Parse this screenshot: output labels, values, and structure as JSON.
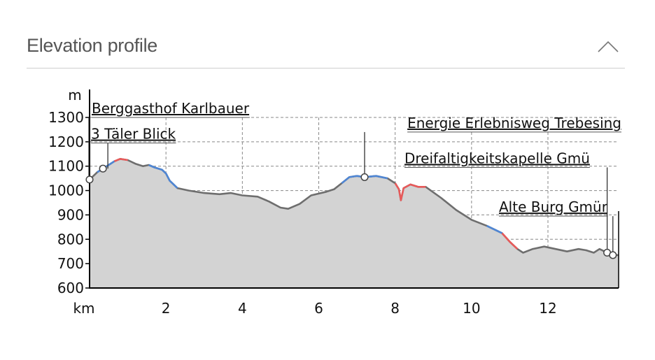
{
  "header": {
    "title": "Elevation profile",
    "collapse_icon": "chevron-up-icon"
  },
  "chart_data": {
    "type": "area",
    "ylabel": "m",
    "xlabel": "km",
    "xlim": [
      0,
      13.85
    ],
    "ylim": [
      600,
      1300
    ],
    "x_ticks": [
      2,
      4,
      6,
      8,
      10,
      12
    ],
    "y_ticks": [
      600,
      700,
      800,
      900,
      1000,
      1100,
      1200,
      1300
    ],
    "grid": true,
    "colors": {
      "fill": "#d3d3d3",
      "line": "#6e6e6e",
      "climb": "#4f86d4",
      "steep": "#e85a5a",
      "grid": "#888888",
      "axis": "#000000"
    },
    "profile": [
      [
        0.0,
        1045
      ],
      [
        0.2,
        1075
      ],
      [
        0.35,
        1090
      ],
      [
        0.5,
        1105
      ],
      [
        0.65,
        1120
      ],
      [
        0.8,
        1130
      ],
      [
        1.0,
        1125
      ],
      [
        1.2,
        1110
      ],
      [
        1.4,
        1100
      ],
      [
        1.55,
        1105
      ],
      [
        1.7,
        1095
      ],
      [
        1.9,
        1085
      ],
      [
        2.0,
        1070
      ],
      [
        2.1,
        1040
      ],
      [
        2.3,
        1010
      ],
      [
        2.6,
        1000
      ],
      [
        3.0,
        990
      ],
      [
        3.4,
        985
      ],
      [
        3.7,
        990
      ],
      [
        4.0,
        980
      ],
      [
        4.4,
        975
      ],
      [
        4.7,
        955
      ],
      [
        5.0,
        930
      ],
      [
        5.2,
        925
      ],
      [
        5.5,
        945
      ],
      [
        5.8,
        980
      ],
      [
        6.2,
        995
      ],
      [
        6.4,
        1005
      ],
      [
        6.6,
        1030
      ],
      [
        6.8,
        1055
      ],
      [
        7.0,
        1060
      ],
      [
        7.2,
        1055
      ],
      [
        7.5,
        1060
      ],
      [
        7.8,
        1050
      ],
      [
        8.0,
        1030
      ],
      [
        8.1,
        1005
      ],
      [
        8.15,
        960
      ],
      [
        8.22,
        1010
      ],
      [
        8.4,
        1025
      ],
      [
        8.6,
        1015
      ],
      [
        8.8,
        1015
      ],
      [
        9.2,
        970
      ],
      [
        9.6,
        920
      ],
      [
        10.0,
        880
      ],
      [
        10.4,
        855
      ],
      [
        10.8,
        825
      ],
      [
        11.0,
        790
      ],
      [
        11.2,
        760
      ],
      [
        11.35,
        745
      ],
      [
        11.6,
        760
      ],
      [
        11.9,
        770
      ],
      [
        12.2,
        760
      ],
      [
        12.5,
        750
      ],
      [
        12.8,
        760
      ],
      [
        13.0,
        755
      ],
      [
        13.2,
        745
      ],
      [
        13.35,
        760
      ],
      [
        13.55,
        745
      ],
      [
        13.7,
        735
      ],
      [
        13.85,
        735
      ]
    ],
    "colored_segments": [
      {
        "color": "climb",
        "from": 0.2,
        "to": 0.65
      },
      {
        "color": "steep",
        "from": 0.65,
        "to": 1.0
      },
      {
        "color": "climb",
        "from": 1.55,
        "to": 2.3
      },
      {
        "color": "climb",
        "from": 6.6,
        "to": 7.8
      },
      {
        "color": "steep",
        "from": 8.0,
        "to": 8.8
      },
      {
        "color": "climb",
        "from": 10.4,
        "to": 10.8
      },
      {
        "color": "steep",
        "from": 10.8,
        "to": 11.2
      }
    ],
    "waypoints": [
      {
        "name": "Berggasthof Karlbauer",
        "x": 0.0,
        "elevation": 1045,
        "label_level": 1300
      },
      {
        "name": "3 Täler Blick",
        "x": 0.35,
        "elevation": 1090,
        "label_level": 1195
      },
      {
        "name": "Energie Erlebnisweg Trebesing",
        "x": 7.2,
        "elevation": 1055,
        "label_level": 1240
      },
      {
        "name": "Dreifaltigkeitskapelle Gmü",
        "x": 13.55,
        "elevation": 745,
        "label_level": 1095
      },
      {
        "name": "Alte Burg Gmür",
        "x": 13.7,
        "elevation": 735,
        "label_level": 895
      }
    ]
  }
}
